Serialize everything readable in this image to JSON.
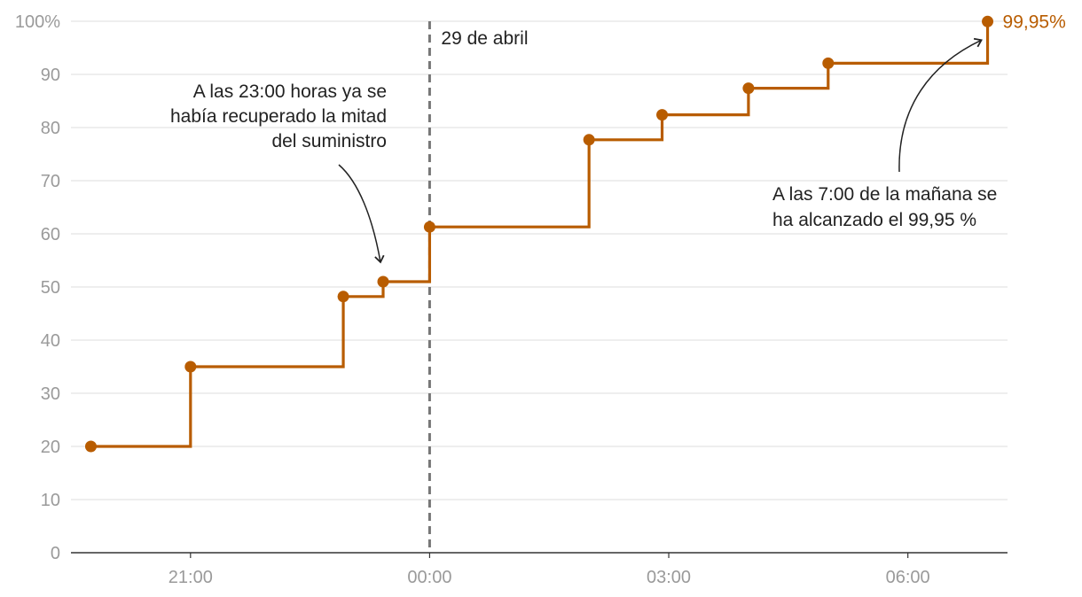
{
  "chart_data": {
    "type": "line",
    "step": "after",
    "title": "",
    "xlabel": "",
    "ylabel": "",
    "ylim": [
      0,
      100
    ],
    "xlim": [
      "19:30",
      "07:15"
    ],
    "grid": true,
    "y_ticks": [
      {
        "value": 0,
        "label": "0"
      },
      {
        "value": 10,
        "label": "10"
      },
      {
        "value": 20,
        "label": "20"
      },
      {
        "value": 30,
        "label": "30"
      },
      {
        "value": 40,
        "label": "40"
      },
      {
        "value": 50,
        "label": "50"
      },
      {
        "value": 60,
        "label": "60"
      },
      {
        "value": 70,
        "label": "70"
      },
      {
        "value": 80,
        "label": "80"
      },
      {
        "value": 90,
        "label": "90"
      },
      {
        "value": 100,
        "label": "100%"
      }
    ],
    "x_ticks": [
      {
        "value": "21:00",
        "label": "21:00"
      },
      {
        "value": "00:00",
        "label": "00:00"
      },
      {
        "value": "03:00",
        "label": "03:00"
      },
      {
        "value": "06:00",
        "label": "06:00"
      }
    ],
    "series": [
      {
        "color": "#b85c00",
        "points": [
          {
            "x": "19:45",
            "y": 20
          },
          {
            "x": "21:00",
            "y": 35
          },
          {
            "x": "22:55",
            "y": 48.2
          },
          {
            "x": "23:25",
            "y": 51
          },
          {
            "x": "00:00",
            "y": 61.3
          },
          {
            "x": "02:00",
            "y": 77.7
          },
          {
            "x": "02:55",
            "y": 82.4
          },
          {
            "x": "04:00",
            "y": 87.4
          },
          {
            "x": "05:00",
            "y": 92.1
          },
          {
            "x": "07:00",
            "y": 99.95
          }
        ],
        "end_label": "99,95%"
      }
    ],
    "reference_line": {
      "x": "00:00",
      "label": "29 de abril"
    },
    "annotations": [
      {
        "lines": [
          "A las 23:00 horas ya se",
          "había recuperado la mitad",
          "del suministro"
        ],
        "target": {
          "x": "23:25",
          "y": 51
        }
      },
      {
        "lines": [
          "A las 7:00 de la mañana se",
          "ha alcanzado el 99,95 %"
        ],
        "target": {
          "x": "07:00",
          "y": 99.95
        }
      }
    ]
  }
}
